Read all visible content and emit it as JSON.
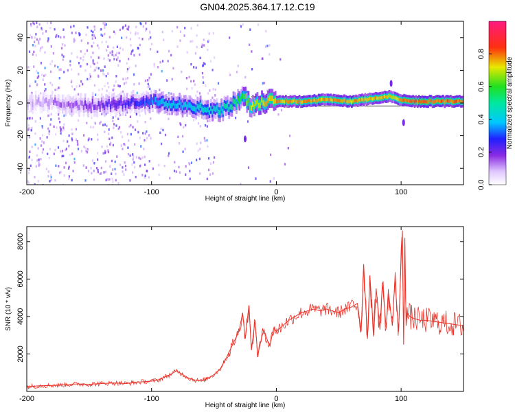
{
  "title": "GN04.2025.364.17.12.C19",
  "colors": {
    "snr_line": "#e8342a",
    "axis": "#000000",
    "spectrum_low": "#8a2be2",
    "spectrum_mid": "#00e0e0",
    "spectrum_high": "#ff1a1a"
  },
  "chart_data": [
    {
      "type": "heatmap",
      "title": "",
      "xlabel": "Height of straight line (km)",
      "ylabel": "Frequency (Hz)",
      "xlim": [
        -200,
        150
      ],
      "ylim": [
        -50,
        50
      ],
      "x_ticks": [
        -200,
        -100,
        0,
        100
      ],
      "x_tick_labels": [
        "-200",
        "-100",
        "0",
        "100"
      ],
      "y_ticks": [
        -40,
        -20,
        0,
        20,
        40
      ],
      "y_tick_labels": [
        "-40",
        "-20",
        "0",
        "20",
        "40"
      ],
      "colorbar": {
        "label": "Normalized spectral amplitude",
        "range": [
          0,
          1
        ],
        "ticks": [
          0.0,
          0.2,
          0.4,
          0.6,
          0.8
        ],
        "tick_labels": [
          "0.0",
          "0.2",
          "0.4",
          "0.6",
          "0.8"
        ],
        "colormap": "rainbow-white-purple-blue-cyan-green-yellow-red-magenta"
      },
      "ridge": {
        "x": [
          -200,
          -180,
          -160,
          -140,
          -120,
          -100,
          -90,
          -80,
          -70,
          -60,
          -50,
          -40,
          -30,
          -25,
          -20,
          -10,
          0,
          20,
          40,
          60,
          80,
          90,
          95,
          100,
          110,
          120,
          150
        ],
        "y": [
          0,
          0,
          -1,
          -1,
          0,
          1,
          0,
          -1,
          -3,
          -3,
          -5,
          -3,
          2,
          3,
          -2,
          1,
          1,
          1,
          2,
          1,
          3,
          4,
          3,
          2,
          1,
          1,
          1
        ],
        "peak_amplitude": [
          0.1,
          0.15,
          0.2,
          0.25,
          0.3,
          0.4,
          0.5,
          0.5,
          0.5,
          0.55,
          0.55,
          0.6,
          0.7,
          0.75,
          0.85,
          0.9,
          0.95,
          0.95,
          0.95,
          0.95,
          0.95,
          0.9,
          0.9,
          0.95,
          1.0,
          1.0,
          1.0
        ]
      }
    },
    {
      "type": "line",
      "title": "",
      "xlabel": "Height of straight line (km)",
      "ylabel": "SNR (10 * v/v)",
      "xlim": [
        -200,
        150
      ],
      "ylim": [
        0,
        8800
      ],
      "x_ticks": [
        -200,
        -100,
        0,
        100
      ],
      "x_tick_labels": [
        "-200",
        "-100",
        "0",
        "100"
      ],
      "y_ticks": [
        2000,
        4000,
        6000,
        8000
      ],
      "y_tick_labels": [
        "2000",
        "4000",
        "6000",
        "8000"
      ],
      "grid": false,
      "series": [
        {
          "x": [
            -200,
            -190,
            -180,
            -170,
            -160,
            -150,
            -140,
            -130,
            -120,
            -110,
            -100,
            -95,
            -90,
            -85,
            -80,
            -75,
            -70,
            -65,
            -60,
            -55,
            -50,
            -45,
            -40,
            -35,
            -30,
            -27,
            -25,
            -22,
            -20,
            -17,
            -15,
            -12,
            -10,
            -7,
            -5,
            -2,
            0,
            5,
            10,
            15,
            20,
            25,
            30,
            35,
            40,
            45,
            50,
            55,
            60,
            65,
            68,
            70,
            73,
            75,
            78,
            80,
            83,
            85,
            88,
            90,
            93,
            95,
            98,
            100,
            101,
            102,
            103,
            104,
            105,
            107,
            110,
            115,
            120,
            130,
            140,
            150
          ],
          "y": [
            250,
            300,
            320,
            350,
            400,
            380,
            420,
            450,
            420,
            500,
            550,
            600,
            750,
            900,
            1100,
            900,
            700,
            600,
            550,
            700,
            900,
            1200,
            1800,
            2500,
            3200,
            4200,
            2800,
            4600,
            2200,
            3800,
            1900,
            2800,
            3300,
            2700,
            2500,
            3400,
            3200,
            3500,
            3800,
            4000,
            4200,
            4300,
            4400,
            4300,
            4400,
            4300,
            4200,
            4400,
            4500,
            4700,
            3200,
            6800,
            2800,
            6200,
            3000,
            5500,
            3300,
            5800,
            3400,
            5200,
            3500,
            6000,
            3200,
            7000,
            8600,
            2500,
            8200,
            3500,
            4200,
            4000,
            3900,
            3800,
            3800,
            3700,
            3600,
            3500
          ]
        }
      ]
    }
  ]
}
